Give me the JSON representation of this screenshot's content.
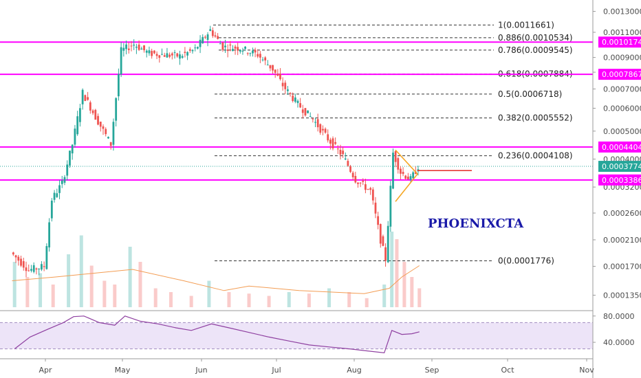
{
  "chart_data": [
    {
      "type": "candlestick",
      "title": "",
      "watermark": "PHOENIXCTA",
      "x_axis": {
        "ticks": [
          "Apr",
          "May",
          "Jun",
          "Jul",
          "Aug",
          "Sep",
          "Oct",
          "Nov"
        ]
      },
      "y_axis": {
        "scale": "log",
        "ticks": [
          {
            "value": 0.0013,
            "label": "0.0013000"
          },
          {
            "value": 0.0011,
            "label": "0.0011000"
          },
          {
            "value": 0.0009,
            "label": "0.0009000"
          },
          {
            "value": 0.0008,
            "label": "0.0008000"
          },
          {
            "value": 0.0007,
            "label": "0.0007000"
          },
          {
            "value": 0.0006,
            "label": "0.0006000"
          },
          {
            "value": 0.0005,
            "label": "0.0005000"
          },
          {
            "value": 0.0004,
            "label": "0.0004000"
          },
          {
            "value": 0.00032,
            "label": "0.0003200"
          },
          {
            "value": 0.00026,
            "label": "0.0002600"
          },
          {
            "value": 0.00021,
            "label": "0.0002100"
          },
          {
            "value": 0.00017,
            "label": "0.0001700"
          },
          {
            "value": 0.000135,
            "label": "0.0001350"
          }
        ]
      },
      "fibonacci_levels": [
        {
          "label": "1(0.0011661)",
          "value": 0.0011661
        },
        {
          "label": "0.886(0.0010534)",
          "value": 0.0010534
        },
        {
          "label": "0.786(0.0009545)",
          "value": 0.0009545
        },
        {
          "label": "0.618(0.0007884)",
          "value": 0.0007884
        },
        {
          "label": "0.5(0.0006718)",
          "value": 0.0006718
        },
        {
          "label": "0.382(0.0005552)",
          "value": 0.0005552
        },
        {
          "label": "0.236(0.0004108)",
          "value": 0.0004108
        },
        {
          "label": "0(0.0001776)",
          "value": 0.0001776
        }
      ],
      "horizontal_levels": [
        {
          "label": "0.0010174",
          "value": 0.0010174,
          "color": "#ff00ff"
        },
        {
          "label": "0.0007867",
          "value": 0.0007867,
          "color": "#ff00ff"
        },
        {
          "label": "0.0004404",
          "value": 0.0004404,
          "color": "#ff00ff"
        },
        {
          "label": "0.0003386",
          "value": 0.0003386,
          "color": "#ff00ff"
        }
      ],
      "last_price": {
        "label": "0.0003774",
        "value": 0.0003774,
        "color": "#26a69a"
      },
      "price_series": [
        {
          "date": "2018-03-19",
          "close": 0.00019
        },
        {
          "date": "2018-03-26",
          "close": 0.000165
        },
        {
          "date": "2018-04-01",
          "close": 0.00017
        },
        {
          "date": "2018-04-04",
          "close": 0.00029
        },
        {
          "date": "2018-04-08",
          "close": 0.00033
        },
        {
          "date": "2018-04-12",
          "close": 0.00045
        },
        {
          "date": "2018-04-16",
          "close": 0.00068
        },
        {
          "date": "2018-04-21",
          "close": 0.00056
        },
        {
          "date": "2018-04-27",
          "close": 0.00045
        },
        {
          "date": "2018-05-01",
          "close": 0.00095
        },
        {
          "date": "2018-05-06",
          "close": 0.001
        },
        {
          "date": "2018-05-12",
          "close": 0.00093
        },
        {
          "date": "2018-05-18",
          "close": 0.00092
        },
        {
          "date": "2018-05-24",
          "close": 0.00091
        },
        {
          "date": "2018-05-30",
          "close": 0.00096
        },
        {
          "date": "2018-06-05",
          "close": 0.00112
        },
        {
          "date": "2018-06-10",
          "close": 0.00098
        },
        {
          "date": "2018-06-17",
          "close": 0.00097
        },
        {
          "date": "2018-06-24",
          "close": 0.00092
        },
        {
          "date": "2018-06-30",
          "close": 0.00082
        },
        {
          "date": "2018-07-04",
          "close": 0.00072
        },
        {
          "date": "2018-07-10",
          "close": 0.00062
        },
        {
          "date": "2018-07-16",
          "close": 0.00055
        },
        {
          "date": "2018-07-22",
          "close": 0.00047
        },
        {
          "date": "2018-07-28",
          "close": 0.00041
        },
        {
          "date": "2018-08-02",
          "close": 0.00034
        },
        {
          "date": "2018-08-08",
          "close": 0.00031
        },
        {
          "date": "2018-08-12",
          "close": 0.00021
        },
        {
          "date": "2018-08-14",
          "close": 0.00018
        },
        {
          "date": "2018-08-17",
          "close": 0.00042
        },
        {
          "date": "2018-08-20",
          "close": 0.00036
        },
        {
          "date": "2018-08-24",
          "close": 0.00034
        },
        {
          "date": "2018-08-27",
          "close": 0.0003774
        }
      ],
      "volume": {
        "bars": [
          {
            "date": "2018-03-20",
            "value": 60
          },
          {
            "date": "2018-03-25",
            "value": 40
          },
          {
            "date": "2018-03-30",
            "value": 45
          },
          {
            "date": "2018-04-04",
            "value": 30
          },
          {
            "date": "2018-04-10",
            "value": 70
          },
          {
            "date": "2018-04-15",
            "value": 95
          },
          {
            "date": "2018-04-19",
            "value": 55
          },
          {
            "date": "2018-04-24",
            "value": 35
          },
          {
            "date": "2018-04-28",
            "value": 30
          },
          {
            "date": "2018-05-04",
            "value": 80
          },
          {
            "date": "2018-05-08",
            "value": 60
          },
          {
            "date": "2018-05-14",
            "value": 25
          },
          {
            "date": "2018-05-20",
            "value": 20
          },
          {
            "date": "2018-05-28",
            "value": 15
          },
          {
            "date": "2018-06-04",
            "value": 35
          },
          {
            "date": "2018-06-12",
            "value": 20
          },
          {
            "date": "2018-06-20",
            "value": 18
          },
          {
            "date": "2018-06-28",
            "value": 15
          },
          {
            "date": "2018-07-06",
            "value": 20
          },
          {
            "date": "2018-07-14",
            "value": 18
          },
          {
            "date": "2018-07-22",
            "value": 25
          },
          {
            "date": "2018-07-30",
            "value": 20
          },
          {
            "date": "2018-08-06",
            "value": 12
          },
          {
            "date": "2018-08-13",
            "value": 30
          },
          {
            "date": "2018-08-16",
            "value": 100
          },
          {
            "date": "2018-08-18",
            "value": 90
          },
          {
            "date": "2018-08-21",
            "value": 60
          },
          {
            "date": "2018-08-24",
            "value": 40
          },
          {
            "date": "2018-08-27",
            "value": 25
          }
        ],
        "ma": [
          {
            "date": "2018-03-19",
            "value": 35
          },
          {
            "date": "2018-04-05",
            "value": 40
          },
          {
            "date": "2018-04-20",
            "value": 45
          },
          {
            "date": "2018-05-05",
            "value": 50
          },
          {
            "date": "2018-05-25",
            "value": 35
          },
          {
            "date": "2018-06-10",
            "value": 22
          },
          {
            "date": "2018-06-20",
            "value": 28
          },
          {
            "date": "2018-07-10",
            "value": 22
          },
          {
            "date": "2018-08-05",
            "value": 18
          },
          {
            "date": "2018-08-15",
            "value": 25
          },
          {
            "date": "2018-08-20",
            "value": 40
          },
          {
            "date": "2018-08-27",
            "value": 55
          }
        ]
      },
      "rsi": {
        "ticks": [
          {
            "value": 80,
            "label": "80.0000"
          },
          {
            "value": 40,
            "label": "40.0000"
          }
        ],
        "band": [
          70,
          30
        ],
        "series": [
          {
            "date": "2018-03-20",
            "value": 30
          },
          {
            "date": "2018-03-26",
            "value": 48
          },
          {
            "date": "2018-04-02",
            "value": 60
          },
          {
            "date": "2018-04-08",
            "value": 70
          },
          {
            "date": "2018-04-12",
            "value": 79
          },
          {
            "date": "2018-04-16",
            "value": 80
          },
          {
            "date": "2018-04-22",
            "value": 70
          },
          {
            "date": "2018-04-28",
            "value": 66
          },
          {
            "date": "2018-05-02",
            "value": 80
          },
          {
            "date": "2018-05-08",
            "value": 72
          },
          {
            "date": "2018-05-15",
            "value": 68
          },
          {
            "date": "2018-05-22",
            "value": 62
          },
          {
            "date": "2018-05-28",
            "value": 58
          },
          {
            "date": "2018-06-05",
            "value": 68
          },
          {
            "date": "2018-06-12",
            "value": 62
          },
          {
            "date": "2018-06-20",
            "value": 55
          },
          {
            "date": "2018-06-28",
            "value": 48
          },
          {
            "date": "2018-07-06",
            "value": 42
          },
          {
            "date": "2018-07-14",
            "value": 36
          },
          {
            "date": "2018-07-22",
            "value": 33
          },
          {
            "date": "2018-07-30",
            "value": 30
          },
          {
            "date": "2018-08-06",
            "value": 27
          },
          {
            "date": "2018-08-13",
            "value": 24
          },
          {
            "date": "2018-08-16",
            "value": 58
          },
          {
            "date": "2018-08-20",
            "value": 52
          },
          {
            "date": "2018-08-24",
            "value": 53
          },
          {
            "date": "2018-08-27",
            "value": 56
          }
        ]
      },
      "colors": {
        "up": "#26a69a",
        "down": "#ef5350",
        "magenta": "#ff00ff",
        "fib_dash": "#333333",
        "triangle": "#f5a623",
        "target": "#e53935",
        "volume_ma": "#f39c52",
        "rsi": "#8e3fa0",
        "rsi_band": "#e6d9f5"
      },
      "grid": false
    }
  ]
}
